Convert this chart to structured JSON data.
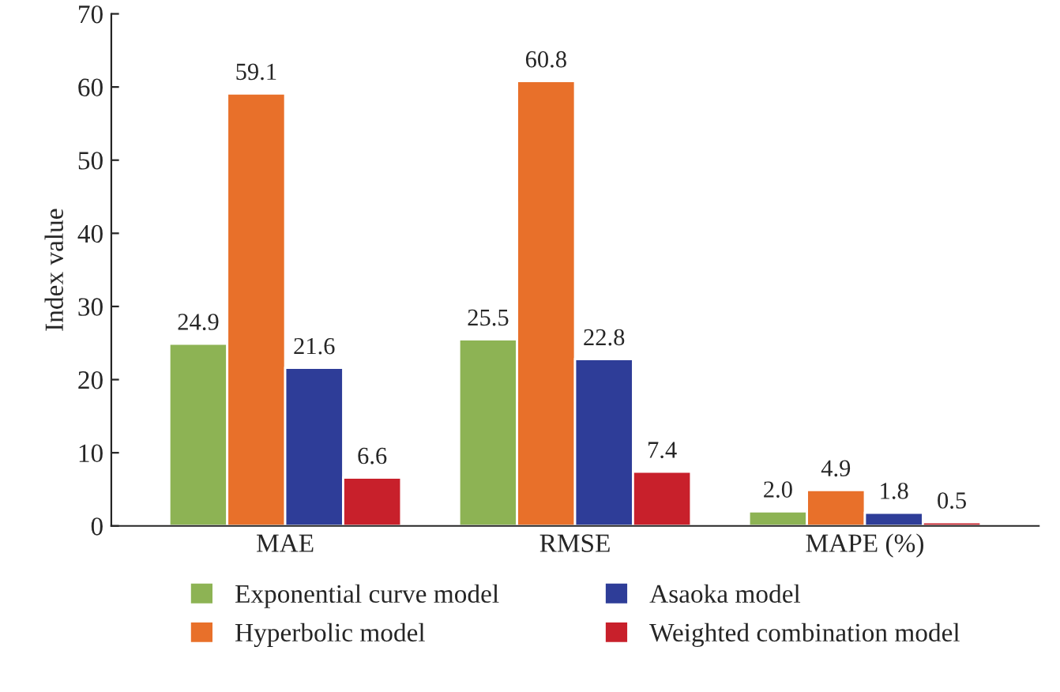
{
  "chart_data": {
    "type": "bar",
    "ylabel": "Index value",
    "categories": [
      "MAE",
      "RMSE",
      "MAPE (%)"
    ],
    "series": [
      {
        "name": "Exponential curve model",
        "color": "#8db354",
        "values": [
          24.9,
          25.5,
          2.0
        ],
        "value_labels": [
          "24.9",
          "25.5",
          "2.0"
        ]
      },
      {
        "name": "Hyperbolic model",
        "color": "#e8702a",
        "values": [
          59.1,
          60.8,
          4.9
        ],
        "value_labels": [
          "59.1",
          "60.8",
          "4.9"
        ]
      },
      {
        "name": "Asaoka model",
        "color": "#2e3d98",
        "values": [
          21.6,
          22.8,
          1.8
        ],
        "value_labels": [
          "21.6",
          "22.8",
          "1.8"
        ]
      },
      {
        "name": "Weighted combination model",
        "color": "#c8202b",
        "values": [
          6.6,
          7.4,
          0.5
        ],
        "value_labels": [
          "6.6",
          "7.4",
          "0.5"
        ]
      }
    ],
    "ylim": [
      0,
      70
    ],
    "yticks": [
      0,
      10,
      20,
      30,
      40,
      50,
      60,
      70
    ],
    "grid": false,
    "legend": "bottom"
  }
}
